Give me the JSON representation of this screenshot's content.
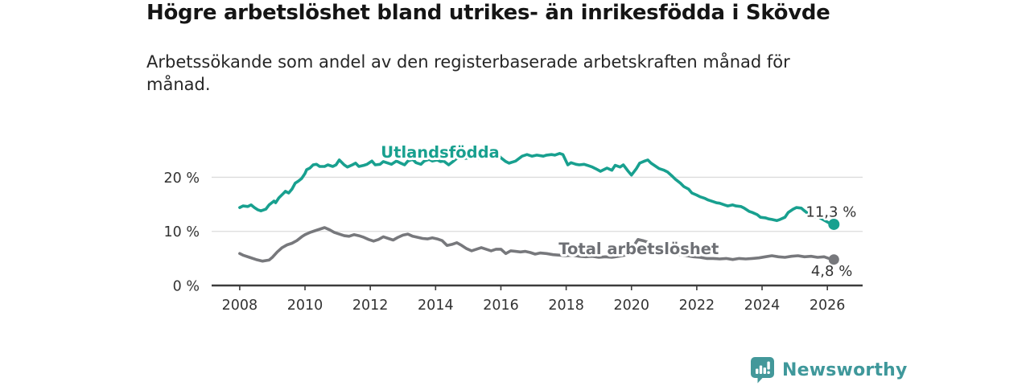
{
  "header": {
    "title": "Högre arbetslöshet bland utrikes- än inrikesfödda i Skövde",
    "subtitle": "Arbetssökande som andel av den registerbaserade arbetskraften månad för månad."
  },
  "footer": {
    "brand": "Newsworthy"
  },
  "colors": {
    "teal": "#18a08f",
    "gray": "#77787c",
    "axis": "#3c3c3c",
    "grid": "#dcdcdc",
    "tick_label": "#333333",
    "end_label": "#333333",
    "brand": "#3f989b",
    "background": "#ffffff"
  },
  "chart_data": {
    "type": "line",
    "title": "Högre arbetslöshet bland utrikes- än inrikesfödda i Skövde",
    "subtitle": "Arbetssökande som andel av den registerbaserade arbetskraften månad för månad.",
    "xlabel": "",
    "ylabel": "",
    "xlim": [
      2007.14,
      2027.08
    ],
    "ylim": [
      0,
      30.5
    ],
    "grid": "horizontal",
    "legend_position": "inline-labels",
    "yticks": [
      0,
      10,
      20
    ],
    "ytick_labels": [
      "0 %",
      "10 %",
      "20 %"
    ],
    "xticks": [
      2008,
      2010,
      2012,
      2014,
      2016,
      2018,
      2020,
      2022,
      2024,
      2026
    ],
    "annotations": [
      {
        "text": "Utlandsfödda",
        "x": 2014.14,
        "y": 23.6,
        "anchor": "middle",
        "color": "#18a08f"
      },
      {
        "text": "Total arbetslöshet",
        "x": 2017.77,
        "y": 5.8,
        "anchor": "start",
        "color": "#6e7075"
      }
    ],
    "series": [
      {
        "name": "Utlandsfödda",
        "color": "#18a08f",
        "end_label": "11,3 %",
        "end_value": 11.3,
        "points": [
          [
            2008.0,
            14.4
          ],
          [
            2008.1,
            14.7
          ],
          [
            2008.25,
            14.6
          ],
          [
            2008.35,
            14.9
          ],
          [
            2008.45,
            14.4
          ],
          [
            2008.55,
            14.0
          ],
          [
            2008.65,
            13.8
          ],
          [
            2008.8,
            14.1
          ],
          [
            2008.9,
            14.9
          ],
          [
            2009.05,
            15.6
          ],
          [
            2009.1,
            15.3
          ],
          [
            2009.2,
            16.2
          ],
          [
            2009.35,
            17.1
          ],
          [
            2009.4,
            17.4
          ],
          [
            2009.5,
            17.1
          ],
          [
            2009.6,
            17.8
          ],
          [
            2009.7,
            18.9
          ],
          [
            2009.8,
            19.3
          ],
          [
            2009.9,
            19.8
          ],
          [
            2010.0,
            20.7
          ],
          [
            2010.05,
            21.4
          ],
          [
            2010.15,
            21.7
          ],
          [
            2010.25,
            22.3
          ],
          [
            2010.35,
            22.4
          ],
          [
            2010.45,
            22.0
          ],
          [
            2010.6,
            22.0
          ],
          [
            2010.7,
            22.3
          ],
          [
            2010.85,
            22.0
          ],
          [
            2010.95,
            22.3
          ],
          [
            2011.05,
            23.2
          ],
          [
            2011.2,
            22.3
          ],
          [
            2011.3,
            21.9
          ],
          [
            2011.45,
            22.3
          ],
          [
            2011.55,
            22.6
          ],
          [
            2011.65,
            22.0
          ],
          [
            2011.8,
            22.2
          ],
          [
            2011.9,
            22.4
          ],
          [
            2012.05,
            23.0
          ],
          [
            2012.15,
            22.3
          ],
          [
            2012.3,
            22.4
          ],
          [
            2012.4,
            22.9
          ],
          [
            2012.55,
            22.6
          ],
          [
            2012.65,
            22.4
          ],
          [
            2012.8,
            23.0
          ],
          [
            2012.9,
            22.7
          ],
          [
            2013.05,
            22.3
          ],
          [
            2013.15,
            23.0
          ],
          [
            2013.3,
            23.3
          ],
          [
            2013.4,
            22.7
          ],
          [
            2013.55,
            22.4
          ],
          [
            2013.65,
            23.0
          ],
          [
            2013.8,
            23.3
          ],
          [
            2013.9,
            23.0
          ],
          [
            2014.05,
            23.2
          ],
          [
            2014.15,
            22.9
          ],
          [
            2014.25,
            23.0
          ],
          [
            2014.4,
            22.3
          ],
          [
            2014.55,
            23.0
          ],
          [
            2014.65,
            23.5
          ],
          [
            2014.8,
            23.6
          ],
          [
            2014.9,
            23.5
          ],
          [
            2015.05,
            23.6
          ],
          [
            2015.15,
            23.5
          ],
          [
            2015.3,
            23.6
          ],
          [
            2015.4,
            23.5
          ],
          [
            2015.5,
            23.6
          ],
          [
            2015.65,
            23.8
          ],
          [
            2015.75,
            24.1
          ],
          [
            2015.9,
            24.2
          ],
          [
            2016.0,
            23.6
          ],
          [
            2016.15,
            22.9
          ],
          [
            2016.25,
            22.6
          ],
          [
            2016.45,
            23.0
          ],
          [
            2016.65,
            23.9
          ],
          [
            2016.8,
            24.2
          ],
          [
            2016.95,
            23.9
          ],
          [
            2017.1,
            24.1
          ],
          [
            2017.3,
            23.9
          ],
          [
            2017.4,
            24.1
          ],
          [
            2017.55,
            24.2
          ],
          [
            2017.65,
            24.1
          ],
          [
            2017.8,
            24.4
          ],
          [
            2017.9,
            24.2
          ],
          [
            2018.05,
            22.3
          ],
          [
            2018.15,
            22.7
          ],
          [
            2018.3,
            22.4
          ],
          [
            2018.4,
            22.3
          ],
          [
            2018.55,
            22.4
          ],
          [
            2018.65,
            22.2
          ],
          [
            2018.8,
            21.9
          ],
          [
            2018.9,
            21.6
          ],
          [
            2019.05,
            21.1
          ],
          [
            2019.15,
            21.4
          ],
          [
            2019.25,
            21.7
          ],
          [
            2019.4,
            21.3
          ],
          [
            2019.5,
            22.2
          ],
          [
            2019.65,
            21.9
          ],
          [
            2019.75,
            22.3
          ],
          [
            2019.9,
            21.1
          ],
          [
            2020.0,
            20.4
          ],
          [
            2020.15,
            21.6
          ],
          [
            2020.25,
            22.6
          ],
          [
            2020.4,
            23.0
          ],
          [
            2020.5,
            23.2
          ],
          [
            2020.6,
            22.6
          ],
          [
            2020.75,
            22.0
          ],
          [
            2020.85,
            21.6
          ],
          [
            2021.0,
            21.3
          ],
          [
            2021.1,
            21.0
          ],
          [
            2021.25,
            20.2
          ],
          [
            2021.35,
            19.6
          ],
          [
            2021.5,
            18.9
          ],
          [
            2021.6,
            18.3
          ],
          [
            2021.75,
            17.8
          ],
          [
            2021.85,
            17.1
          ],
          [
            2022.0,
            16.7
          ],
          [
            2022.1,
            16.4
          ],
          [
            2022.25,
            16.1
          ],
          [
            2022.35,
            15.8
          ],
          [
            2022.5,
            15.5
          ],
          [
            2022.6,
            15.3
          ],
          [
            2022.7,
            15.2
          ],
          [
            2022.85,
            14.9
          ],
          [
            2022.95,
            14.7
          ],
          [
            2023.1,
            14.9
          ],
          [
            2023.2,
            14.7
          ],
          [
            2023.35,
            14.6
          ],
          [
            2023.45,
            14.3
          ],
          [
            2023.6,
            13.7
          ],
          [
            2023.7,
            13.5
          ],
          [
            2023.85,
            13.1
          ],
          [
            2023.95,
            12.6
          ],
          [
            2024.1,
            12.5
          ],
          [
            2024.2,
            12.3
          ],
          [
            2024.3,
            12.2
          ],
          [
            2024.45,
            12.0
          ],
          [
            2024.55,
            12.2
          ],
          [
            2024.7,
            12.6
          ],
          [
            2024.8,
            13.5
          ],
          [
            2024.95,
            14.1
          ],
          [
            2025.05,
            14.4
          ],
          [
            2025.2,
            14.3
          ],
          [
            2025.3,
            13.8
          ],
          [
            2025.45,
            13.1
          ],
          [
            2025.55,
            12.6
          ],
          [
            2025.7,
            12.8
          ],
          [
            2025.8,
            12.4
          ],
          [
            2025.95,
            11.9
          ],
          [
            2026.1,
            11.4
          ],
          [
            2026.2,
            11.3
          ]
        ]
      },
      {
        "name": "Total arbetslöshet",
        "color": "#77787c",
        "end_label": "4,8 %",
        "end_value": 4.8,
        "points": [
          [
            2008.0,
            5.9
          ],
          [
            2008.1,
            5.6
          ],
          [
            2008.3,
            5.2
          ],
          [
            2008.5,
            4.8
          ],
          [
            2008.7,
            4.5
          ],
          [
            2008.9,
            4.7
          ],
          [
            2009.0,
            5.2
          ],
          [
            2009.15,
            6.2
          ],
          [
            2009.3,
            7.0
          ],
          [
            2009.45,
            7.5
          ],
          [
            2009.6,
            7.8
          ],
          [
            2009.75,
            8.3
          ],
          [
            2009.9,
            9.0
          ],
          [
            2010.0,
            9.4
          ],
          [
            2010.15,
            9.8
          ],
          [
            2010.3,
            10.1
          ],
          [
            2010.45,
            10.4
          ],
          [
            2010.6,
            10.7
          ],
          [
            2010.75,
            10.3
          ],
          [
            2010.9,
            9.8
          ],
          [
            2011.05,
            9.5
          ],
          [
            2011.2,
            9.2
          ],
          [
            2011.35,
            9.1
          ],
          [
            2011.5,
            9.4
          ],
          [
            2011.65,
            9.2
          ],
          [
            2011.8,
            8.9
          ],
          [
            2011.95,
            8.5
          ],
          [
            2012.1,
            8.2
          ],
          [
            2012.25,
            8.5
          ],
          [
            2012.4,
            9.0
          ],
          [
            2012.55,
            8.7
          ],
          [
            2012.7,
            8.4
          ],
          [
            2012.85,
            8.9
          ],
          [
            2013.0,
            9.3
          ],
          [
            2013.15,
            9.5
          ],
          [
            2013.3,
            9.1
          ],
          [
            2013.45,
            8.9
          ],
          [
            2013.6,
            8.7
          ],
          [
            2013.75,
            8.6
          ],
          [
            2013.9,
            8.8
          ],
          [
            2014.05,
            8.6
          ],
          [
            2014.2,
            8.3
          ],
          [
            2014.35,
            7.4
          ],
          [
            2014.5,
            7.6
          ],
          [
            2014.65,
            7.9
          ],
          [
            2014.8,
            7.4
          ],
          [
            2014.95,
            6.8
          ],
          [
            2015.1,
            6.4
          ],
          [
            2015.25,
            6.7
          ],
          [
            2015.4,
            7.0
          ],
          [
            2015.55,
            6.7
          ],
          [
            2015.7,
            6.4
          ],
          [
            2015.85,
            6.7
          ],
          [
            2016.0,
            6.7
          ],
          [
            2016.15,
            5.9
          ],
          [
            2016.3,
            6.4
          ],
          [
            2016.45,
            6.3
          ],
          [
            2016.6,
            6.2
          ],
          [
            2016.75,
            6.3
          ],
          [
            2016.9,
            6.1
          ],
          [
            2017.05,
            5.8
          ],
          [
            2017.2,
            6.0
          ],
          [
            2017.4,
            5.9
          ],
          [
            2017.6,
            5.7
          ],
          [
            2017.8,
            5.6
          ],
          [
            2018.0,
            5.5
          ],
          [
            2018.2,
            5.6
          ],
          [
            2018.4,
            5.4
          ],
          [
            2018.6,
            5.3
          ],
          [
            2018.8,
            5.4
          ],
          [
            2019.0,
            5.2
          ],
          [
            2019.2,
            5.3
          ],
          [
            2019.4,
            5.2
          ],
          [
            2019.6,
            5.4
          ],
          [
            2019.8,
            5.6
          ],
          [
            2020.0,
            6.4
          ],
          [
            2020.1,
            7.6
          ],
          [
            2020.2,
            8.5
          ],
          [
            2020.35,
            8.3
          ],
          [
            2020.5,
            8.0
          ],
          [
            2020.7,
            7.4
          ],
          [
            2020.9,
            6.9
          ],
          [
            2021.1,
            6.4
          ],
          [
            2021.3,
            6.0
          ],
          [
            2021.5,
            5.7
          ],
          [
            2021.7,
            5.5
          ],
          [
            2021.9,
            5.3
          ],
          [
            2022.1,
            5.2
          ],
          [
            2022.3,
            5.0
          ],
          [
            2022.5,
            5.0
          ],
          [
            2022.7,
            4.9
          ],
          [
            2022.9,
            5.0
          ],
          [
            2023.1,
            4.8
          ],
          [
            2023.3,
            5.0
          ],
          [
            2023.5,
            4.9
          ],
          [
            2023.7,
            5.0
          ],
          [
            2023.9,
            5.1
          ],
          [
            2024.1,
            5.3
          ],
          [
            2024.3,
            5.5
          ],
          [
            2024.5,
            5.3
          ],
          [
            2024.7,
            5.2
          ],
          [
            2024.9,
            5.4
          ],
          [
            2025.1,
            5.5
          ],
          [
            2025.3,
            5.3
          ],
          [
            2025.5,
            5.4
          ],
          [
            2025.7,
            5.2
          ],
          [
            2025.9,
            5.3
          ],
          [
            2026.05,
            5.0
          ],
          [
            2026.2,
            4.8
          ]
        ]
      }
    ]
  }
}
